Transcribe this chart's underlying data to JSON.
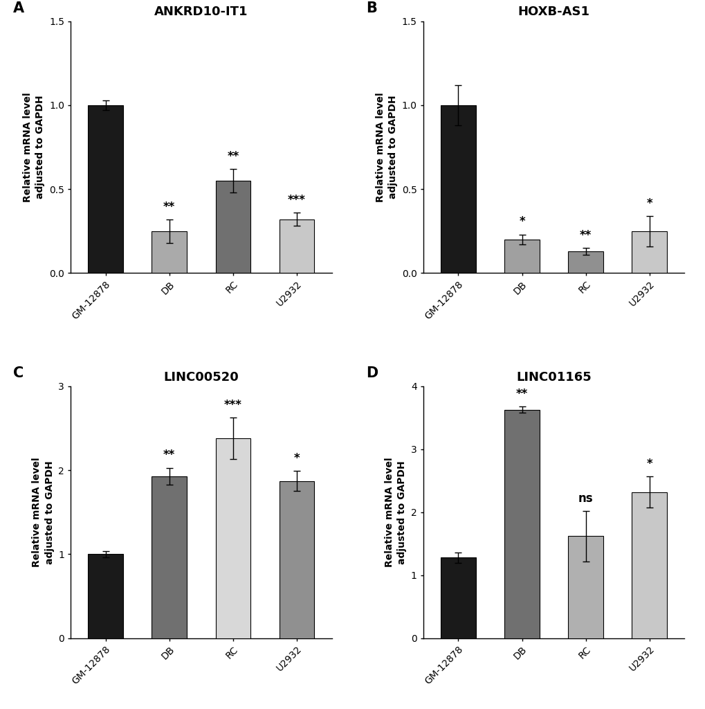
{
  "panels": [
    {
      "label": "A",
      "title": "ANKRD10-IT1",
      "categories": [
        "GM-12878",
        "DB",
        "RC",
        "U2932"
      ],
      "values": [
        1.0,
        0.25,
        0.55,
        0.32
      ],
      "errors": [
        0.03,
        0.07,
        0.07,
        0.04
      ],
      "colors": [
        "#1a1a1a",
        "#aaaaaa",
        "#707070",
        "#c8c8c8"
      ],
      "significance": [
        "",
        "**",
        "**",
        "***"
      ],
      "ylim": [
        0,
        1.5
      ],
      "yticks": [
        0.0,
        0.5,
        1.0,
        1.5
      ],
      "ytick_labels": [
        "0.0",
        "0.5",
        "1.0",
        "1.5"
      ]
    },
    {
      "label": "B",
      "title": "HOXB-AS1",
      "categories": [
        "GM-12878",
        "DB",
        "RC",
        "U2932"
      ],
      "values": [
        1.0,
        0.2,
        0.13,
        0.25
      ],
      "errors": [
        0.12,
        0.03,
        0.02,
        0.09
      ],
      "colors": [
        "#1a1a1a",
        "#a0a0a0",
        "#909090",
        "#c8c8c8"
      ],
      "significance": [
        "",
        "*",
        "**",
        "*"
      ],
      "ylim": [
        0,
        1.5
      ],
      "yticks": [
        0.0,
        0.5,
        1.0,
        1.5
      ],
      "ytick_labels": [
        "0.0",
        "0.5",
        "1.0",
        "1.5"
      ]
    },
    {
      "label": "C",
      "title": "LINC00520",
      "categories": [
        "GM-12878",
        "DB",
        "RC",
        "U2932"
      ],
      "values": [
        1.0,
        1.93,
        2.38,
        1.87
      ],
      "errors": [
        0.04,
        0.1,
        0.25,
        0.12
      ],
      "colors": [
        "#1a1a1a",
        "#707070",
        "#d8d8d8",
        "#909090"
      ],
      "significance": [
        "",
        "**",
        "***",
        "*"
      ],
      "ylim": [
        0,
        3.0
      ],
      "yticks": [
        0,
        1,
        2,
        3
      ],
      "ytick_labels": [
        "0",
        "1",
        "2",
        "3"
      ]
    },
    {
      "label": "D",
      "title": "LINC01165",
      "categories": [
        "GM-12878",
        "DB",
        "RC",
        "U2932"
      ],
      "values": [
        1.28,
        3.63,
        1.62,
        2.32
      ],
      "errors": [
        0.08,
        0.05,
        0.4,
        0.25
      ],
      "colors": [
        "#1a1a1a",
        "#707070",
        "#b0b0b0",
        "#c8c8c8"
      ],
      "significance": [
        "",
        "**",
        "ns",
        "*"
      ],
      "ylim": [
        0,
        4.0
      ],
      "yticks": [
        0,
        1,
        2,
        3,
        4
      ],
      "ytick_labels": [
        "0",
        "1",
        "2",
        "3",
        "4"
      ]
    }
  ],
  "ylabel": "Relative mRNA level\nadjusted to GAPDH",
  "bar_width": 0.55,
  "background_color": "#ffffff",
  "fontsize_title": 13,
  "fontsize_label": 10,
  "fontsize_tick": 10,
  "fontsize_sig": 12,
  "fontsize_panel_label": 15,
  "figure_width": 10.2,
  "figure_height": 10.24,
  "dpi": 100
}
